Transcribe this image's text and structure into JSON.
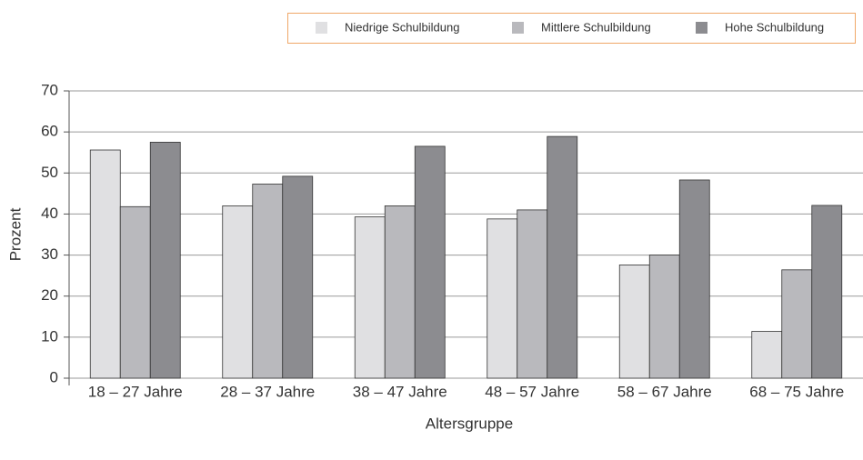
{
  "chart_data": {
    "type": "bar",
    "categories": [
      "18 – 27 Jahre",
      "28 – 37 Jahre",
      "38 – 47 Jahre",
      "48 – 57 Jahre",
      "58 – 67 Jahre",
      "68 – 75 Jahre"
    ],
    "series": [
      {
        "name": "Niedrige Schulbildung",
        "color": "#e0e0e2",
        "values": [
          55.6,
          42,
          39.3,
          38.8,
          27.6,
          11.4
        ]
      },
      {
        "name": "Mittlere Schulbildung",
        "color": "#b9b9bd",
        "values": [
          41.8,
          47.3,
          42,
          41,
          30,
          26.4
        ]
      },
      {
        "name": "Hohe Schulbildung",
        "color": "#8c8c90",
        "values": [
          57.5,
          49.2,
          56.5,
          58.9,
          48.3,
          42.1
        ]
      }
    ],
    "xlabel": "Altersgruppe",
    "ylabel": "Prozent",
    "ylim": [
      0,
      70
    ],
    "yticks": [
      0,
      10,
      20,
      30,
      40,
      50,
      60,
      70
    ],
    "grid": true,
    "legend": "top-right"
  }
}
